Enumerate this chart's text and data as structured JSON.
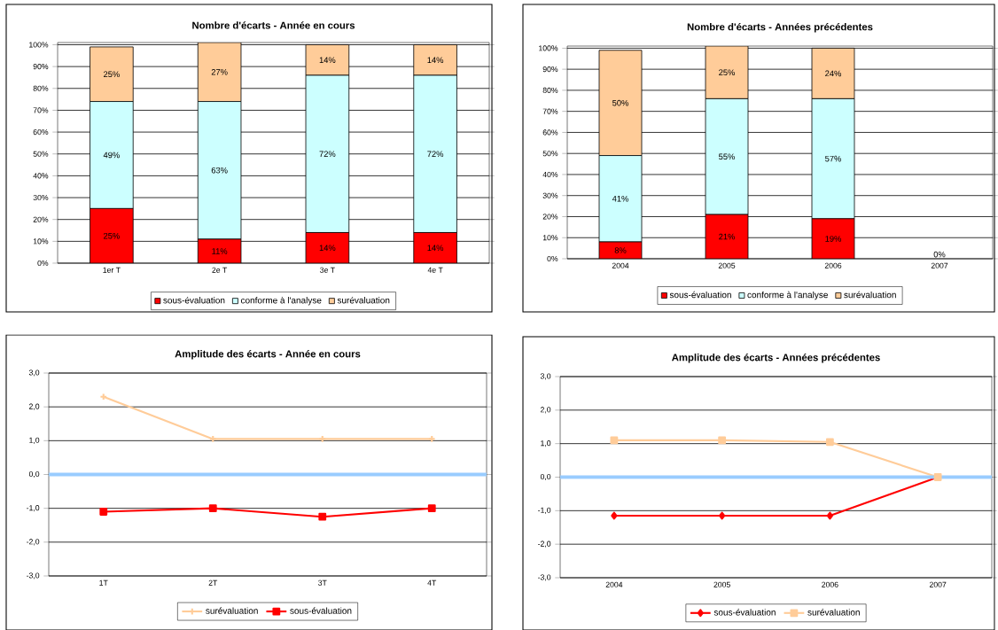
{
  "chart_data": [
    {
      "type": "bar",
      "title": "Nombre d'écarts - Année en cours",
      "stacked": true,
      "categories": [
        "1er T",
        "2e T",
        "3e T",
        "4e T"
      ],
      "ylim": [
        0,
        101
      ],
      "yticks": [
        {
          "value": 0,
          "label": "0%"
        },
        {
          "value": 10,
          "label": "10%"
        },
        {
          "value": 20,
          "label": "20%"
        },
        {
          "value": 30,
          "label": "30%"
        },
        {
          "value": 40,
          "label": "40%"
        },
        {
          "value": 50,
          "label": "50%"
        },
        {
          "value": 60,
          "label": "60%"
        },
        {
          "value": 70,
          "label": "70%"
        },
        {
          "value": 80,
          "label": "80%"
        },
        {
          "value": 90,
          "label": "90%"
        },
        {
          "value": 100,
          "label": "100%"
        }
      ],
      "grid": "y",
      "legend": "bottom",
      "series": [
        {
          "name": "sous-évaluation",
          "color": "#ff0000",
          "values": [
            25,
            11,
            14,
            14
          ],
          "value_labels": [
            "25%",
            "11%",
            "14%",
            "14%"
          ]
        },
        {
          "name": "conforme à l'analyse",
          "color": "#ccffff",
          "values": [
            49,
            63,
            72,
            72
          ],
          "value_labels": [
            "49%",
            "63%",
            "72%",
            "72%"
          ]
        },
        {
          "name": "surévaluation",
          "color": "#ffcc99",
          "values": [
            25,
            27,
            14,
            14
          ],
          "value_labels": [
            "25%",
            "27%",
            "14%",
            "14%"
          ]
        }
      ]
    },
    {
      "type": "bar",
      "title": "Nombre d'écarts - Années précédentes",
      "stacked": true,
      "categories": [
        "2004",
        "2005",
        "2006",
        "2007"
      ],
      "ylim": [
        0,
        101
      ],
      "yticks": [
        {
          "value": 0,
          "label": "0%"
        },
        {
          "value": 10,
          "label": "10%"
        },
        {
          "value": 20,
          "label": "20%"
        },
        {
          "value": 30,
          "label": "30%"
        },
        {
          "value": 40,
          "label": "40%"
        },
        {
          "value": 50,
          "label": "50%"
        },
        {
          "value": 60,
          "label": "60%"
        },
        {
          "value": 70,
          "label": "70%"
        },
        {
          "value": 80,
          "label": "80%"
        },
        {
          "value": 90,
          "label": "90%"
        },
        {
          "value": 100,
          "label": "100%"
        }
      ],
      "grid": "y",
      "legend": "bottom",
      "series": [
        {
          "name": "sous-évaluation",
          "color": "#ff0000",
          "values": [
            8,
            21,
            19,
            0
          ],
          "value_labels": [
            "8%",
            "21%",
            "19%",
            "0%"
          ]
        },
        {
          "name": "conforme à l'analyse",
          "color": "#ccffff",
          "values": [
            41,
            55,
            57,
            null
          ],
          "value_labels": [
            "41%",
            "55%",
            "57%",
            null
          ]
        },
        {
          "name": "surévaluation",
          "color": "#ffcc99",
          "values": [
            50,
            25,
            24,
            null
          ],
          "value_labels": [
            "50%",
            "25%",
            "24%",
            null
          ]
        }
      ]
    },
    {
      "type": "line",
      "title": "Amplitude des écarts - Année en cours",
      "categories": [
        "1T",
        "2T",
        "3T",
        "4T"
      ],
      "ylim": [
        -3,
        3
      ],
      "yticks": [
        {
          "value": -3,
          "label": "-3,0"
        },
        {
          "value": -2,
          "label": "-2,0"
        },
        {
          "value": -1,
          "label": "-1,0"
        },
        {
          "value": 0,
          "label": "0,0"
        },
        {
          "value": 1,
          "label": "1,0"
        },
        {
          "value": 2,
          "label": "2,0"
        },
        {
          "value": 3,
          "label": "3,0"
        }
      ],
      "grid": "y",
      "legend": "bottom",
      "ref_lines": [
        {
          "axis": "y",
          "value": 0,
          "color": "#99ccff"
        }
      ],
      "series": [
        {
          "name": "surévaluation",
          "color": "#ffcc99",
          "marker": "cross",
          "values": [
            2.3,
            1.05,
            1.05,
            1.05
          ]
        },
        {
          "name": "sous-évaluation",
          "color": "#ff0000",
          "marker": "square",
          "values": [
            -1.1,
            -1.0,
            -1.25,
            -1.0
          ]
        }
      ]
    },
    {
      "type": "line",
      "title": "Amplitude des écarts - Années précédentes",
      "categories": [
        "2004",
        "2005",
        "2006",
        "2007"
      ],
      "ylim": [
        -3,
        3
      ],
      "yticks": [
        {
          "value": -3,
          "label": "-3,0"
        },
        {
          "value": -2,
          "label": "-2,0"
        },
        {
          "value": -1,
          "label": "-1,0"
        },
        {
          "value": 0,
          "label": "0,0"
        },
        {
          "value": 1,
          "label": "1,0"
        },
        {
          "value": 2,
          "label": "2,0"
        },
        {
          "value": 3,
          "label": "3,0"
        }
      ],
      "grid": "y",
      "legend": "bottom",
      "ref_lines": [
        {
          "axis": "y",
          "value": 0,
          "color": "#99ccff"
        }
      ],
      "series": [
        {
          "name": "sous-évaluation",
          "color": "#ff0000",
          "marker": "diamond",
          "values": [
            -1.15,
            -1.15,
            -1.15,
            0
          ]
        },
        {
          "name": "surévaluation",
          "color": "#ffcc99",
          "marker": "square",
          "values": [
            1.1,
            1.1,
            1.05,
            0
          ]
        }
      ]
    }
  ]
}
